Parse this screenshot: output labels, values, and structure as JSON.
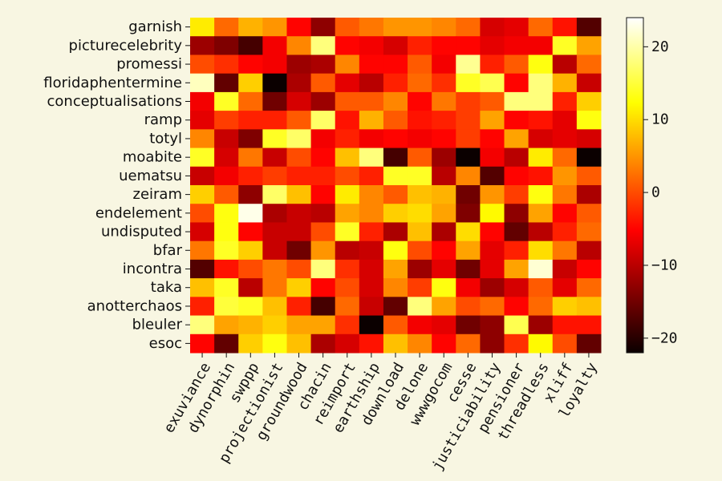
{
  "chart_data": {
    "type": "heatmap",
    "colormap": "hot",
    "background_color": "#f8f6e2",
    "rows": [
      "garnish",
      "picturecelebrity",
      "promessi",
      "floridaphentermine",
      "conceptualisations",
      "ramp",
      "totyl",
      "moabite",
      "uematsu",
      "zeiram",
      "endelement",
      "undisputed",
      "bfar",
      "incontra",
      "taka",
      "anotterchaos",
      "bleuler",
      "esoc"
    ],
    "columns": [
      "exuviance",
      "dynorphin",
      "swppp",
      "projectionist",
      "groundwood",
      "chacin",
      "reimport",
      "earthship",
      "download",
      "delone",
      "wwwgocom",
      "cesse",
      "justiciability",
      "pensioner",
      "threadless",
      "xliff",
      "loyalty"
    ],
    "values": [
      [
        11,
        2,
        7,
        5,
        -5,
        -13,
        1,
        3,
        5,
        5,
        4,
        2,
        -8,
        -7,
        2,
        -4,
        -17
      ],
      [
        -12,
        -14,
        -18,
        -6,
        4,
        18,
        -5,
        -6,
        -8,
        -3,
        -5,
        -5,
        -7,
        -6,
        -6,
        14,
        6
      ],
      [
        0,
        -2,
        -5,
        -6,
        -12,
        -11,
        4,
        -5,
        -5,
        1,
        -6,
        19,
        -3,
        1,
        13,
        -10,
        2
      ],
      [
        21,
        -16,
        9,
        -22,
        -11,
        1,
        -7,
        -10,
        -3,
        2,
        -2,
        14,
        16,
        -5,
        18,
        7,
        -9
      ],
      [
        -6,
        14,
        2,
        -15,
        -8,
        -12,
        1,
        1,
        4,
        -5,
        3,
        -1,
        1,
        18,
        18,
        -3,
        9
      ],
      [
        -7,
        -1,
        -3,
        -3,
        1,
        17,
        -4,
        7,
        1,
        -4,
        -3,
        -1,
        6,
        -5,
        -4,
        -7,
        13
      ],
      [
        4,
        -9,
        -14,
        14,
        17,
        -6,
        -3,
        -6,
        -5,
        -6,
        -5,
        -1,
        -5,
        6,
        -8,
        -7,
        -8
      ],
      [
        14,
        -8,
        3,
        -9,
        0,
        -5,
        8,
        18,
        -18,
        1,
        -12,
        -22,
        -6,
        -10,
        11,
        2,
        -22
      ],
      [
        -9,
        -6,
        -3,
        -1,
        -3,
        -3,
        0,
        -3,
        14,
        14,
        -10,
        4,
        -17,
        -5,
        -4,
        5,
        1
      ],
      [
        9,
        1,
        -13,
        17,
        8,
        -5,
        11,
        4,
        1,
        8,
        7,
        -15,
        5,
        -1,
        13,
        3,
        -11
      ],
      [
        0,
        13,
        23,
        -11,
        -9,
        -10,
        6,
        4,
        9,
        10,
        6,
        -14,
        12,
        -13,
        6,
        -5,
        1
      ],
      [
        -8,
        13,
        -5,
        -9,
        -9,
        0,
        14,
        -3,
        -11,
        8,
        -11,
        10,
        -5,
        -16,
        -10,
        -3,
        2
      ],
      [
        3,
        14,
        9,
        -9,
        -15,
        5,
        -10,
        -9,
        13,
        0,
        -5,
        6,
        -7,
        -3,
        10,
        3,
        -10
      ],
      [
        -17,
        -4,
        0,
        3,
        0,
        18,
        -2,
        -8,
        6,
        -12,
        -7,
        -15,
        -7,
        6,
        22,
        -9,
        -5
      ],
      [
        8,
        14,
        -10,
        3,
        9,
        -5,
        0,
        -8,
        4,
        -1,
        13,
        -6,
        -12,
        -8,
        1,
        -7,
        2
      ],
      [
        -3,
        15,
        14,
        8,
        -3,
        -18,
        2,
        -9,
        -16,
        18,
        6,
        0,
        2,
        -5,
        2,
        9,
        8
      ],
      [
        18,
        6,
        7,
        9,
        6,
        6,
        -2,
        -22,
        1,
        -6,
        -7,
        -15,
        -13,
        16,
        -12,
        -4,
        -4
      ],
      [
        -5,
        -16,
        9,
        13,
        8,
        -11,
        -8,
        -4,
        8,
        4,
        -5,
        2,
        -13,
        -2,
        12,
        0,
        -16
      ]
    ],
    "vmin": -22,
    "vmax": 24,
    "colorbar_ticks": [
      20,
      10,
      0,
      -10,
      -20
    ],
    "colorbar_tick_labels": [
      "20",
      "10",
      "0",
      "−10",
      "−20"
    ],
    "title": "",
    "xlabel": "",
    "ylabel": ""
  }
}
